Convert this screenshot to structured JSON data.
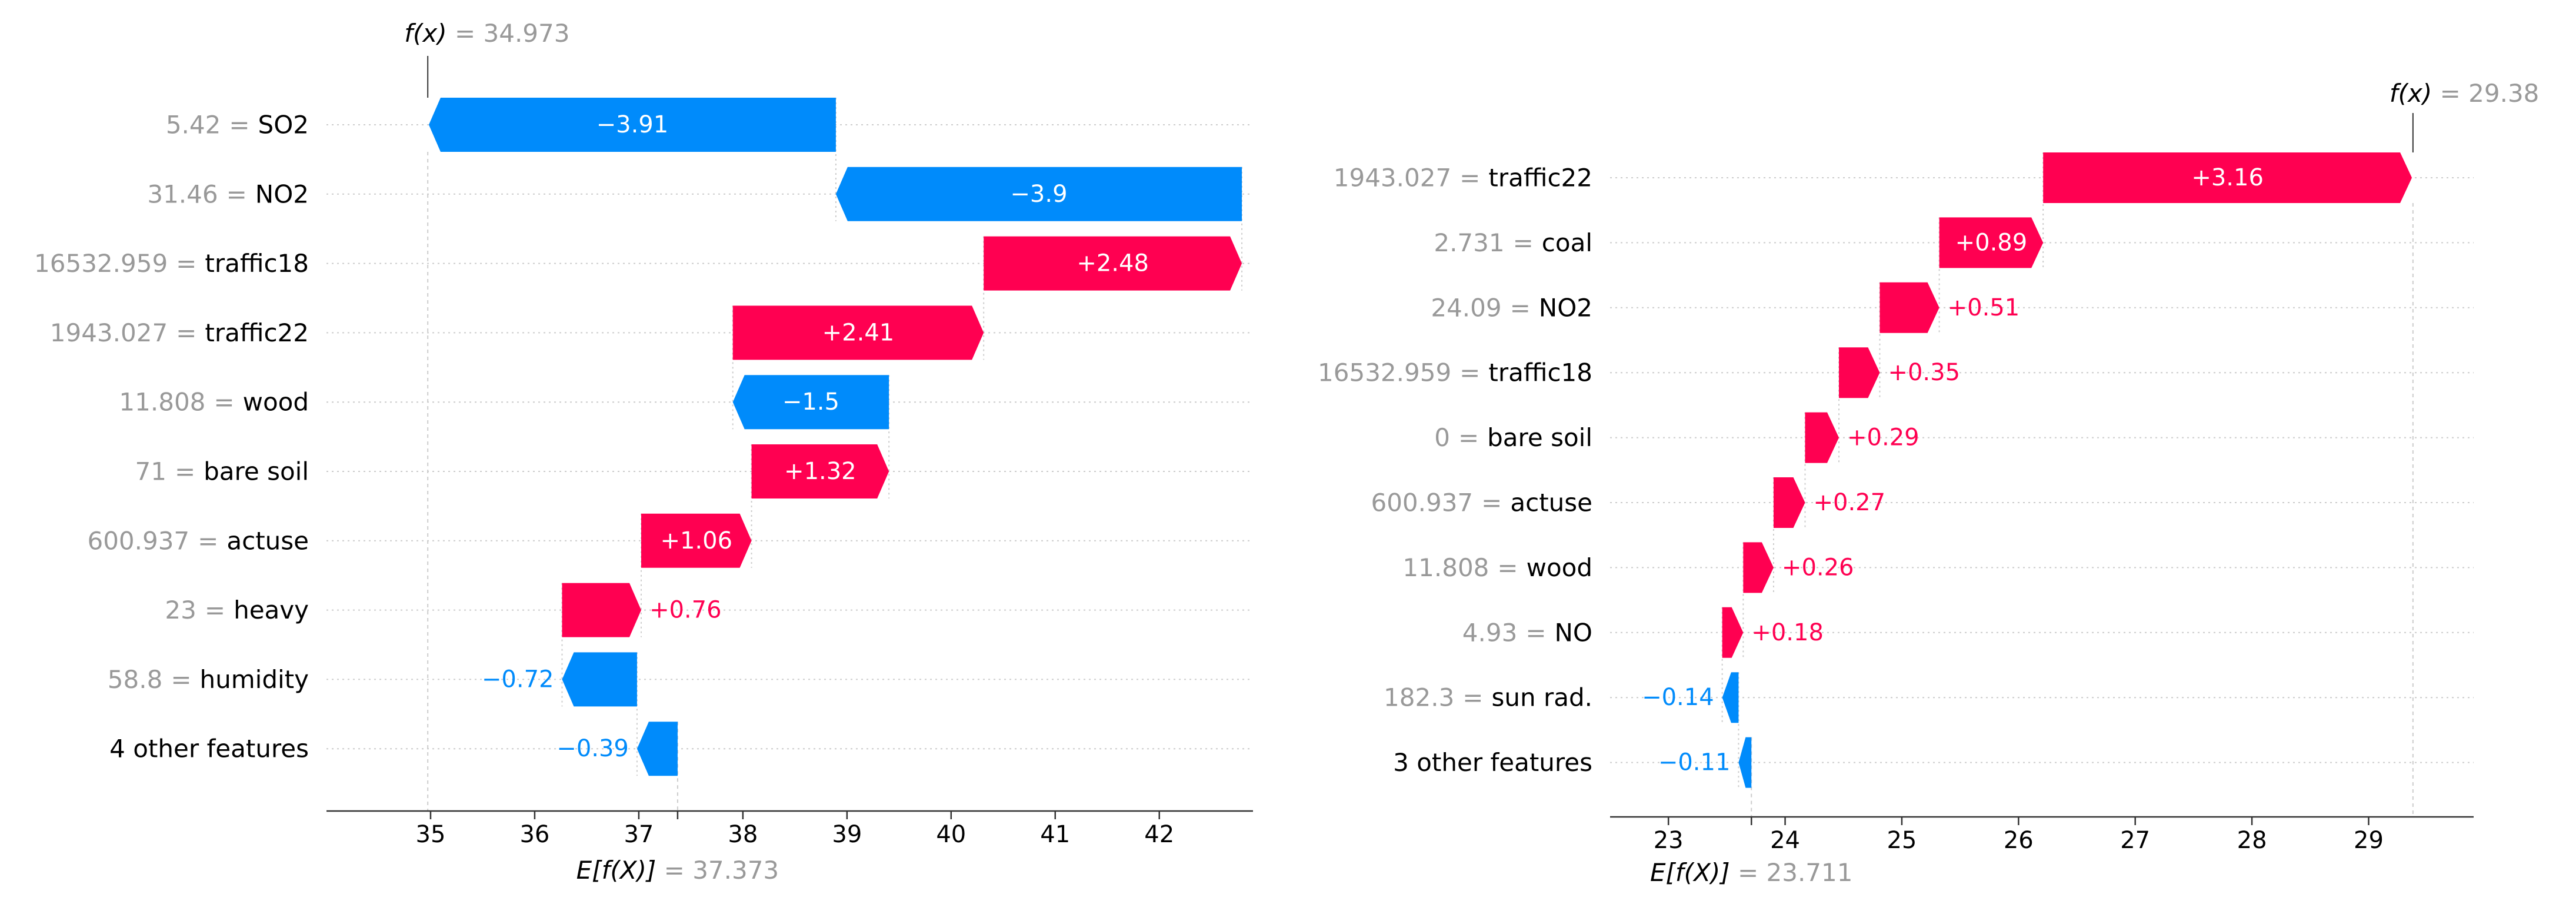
{
  "chart_data": [
    {
      "type": "waterfall",
      "fx_prefix": "f(x)",
      "fx_value": "34.973",
      "fx": 34.973,
      "base_prefix": "E[f(X)]",
      "base_value": "37.373",
      "base": 37.373,
      "xlim": [
        34.0,
        42.9
      ],
      "xticks": [
        35,
        36,
        37,
        38,
        39,
        40,
        41,
        42
      ],
      "tick_labels": [
        "35",
        "36",
        "37",
        "38",
        "39",
        "40",
        "41",
        "42"
      ],
      "features": [
        {
          "value": "5.42",
          "name": "SO2",
          "shap": -3.91,
          "label": "−3.91"
        },
        {
          "value": "31.46",
          "name": "NO2",
          "shap": -3.9,
          "label": "−3.9"
        },
        {
          "value": "16532.959",
          "name": "traffic18",
          "shap": 2.48,
          "label": "+2.48"
        },
        {
          "value": "1943.027",
          "name": "traffic22",
          "shap": 2.41,
          "label": "+2.41"
        },
        {
          "value": "11.808",
          "name": "wood",
          "shap": -1.5,
          "label": "−1.5"
        },
        {
          "value": "71",
          "name": "bare soil",
          "shap": 1.32,
          "label": "+1.32"
        },
        {
          "value": "600.937",
          "name": "actuse",
          "shap": 1.06,
          "label": "+1.06"
        },
        {
          "value": "23",
          "name": "heavy",
          "shap": 0.76,
          "label": "+0.76"
        },
        {
          "value": "58.8",
          "name": "humidity",
          "shap": -0.72,
          "label": "−0.72"
        },
        {
          "value": "",
          "name": "4 other features",
          "shap": -0.39,
          "label": "−0.39"
        }
      ]
    },
    {
      "type": "waterfall",
      "fx_prefix": "f(x)",
      "fx_value": "29.38",
      "fx": 29.38,
      "base_prefix": "E[f(X)]",
      "base_value": "23.711",
      "base": 23.711,
      "xlim": [
        22.5,
        29.9
      ],
      "xticks": [
        23,
        24,
        25,
        26,
        27,
        28,
        29
      ],
      "tick_labels": [
        "23",
        "24",
        "25",
        "26",
        "27",
        "28",
        "29"
      ],
      "features": [
        {
          "value": "1943.027",
          "name": "traffic22",
          "shap": 3.16,
          "label": "+3.16"
        },
        {
          "value": "2.731",
          "name": "coal",
          "shap": 0.89,
          "label": "+0.89"
        },
        {
          "value": "24.09",
          "name": "NO2",
          "shap": 0.51,
          "label": "+0.51"
        },
        {
          "value": "16532.959",
          "name": "traffic18",
          "shap": 0.35,
          "label": "+0.35"
        },
        {
          "value": "0",
          "name": "bare soil",
          "shap": 0.29,
          "label": "+0.29"
        },
        {
          "value": "600.937",
          "name": "actuse",
          "shap": 0.27,
          "label": "+0.27"
        },
        {
          "value": "11.808",
          "name": "wood",
          "shap": 0.26,
          "label": "+0.26"
        },
        {
          "value": "4.93",
          "name": "NO",
          "shap": 0.18,
          "label": "+0.18"
        },
        {
          "value": "182.3",
          "name": "sun rad.",
          "shap": -0.14,
          "label": "−0.14"
        },
        {
          "value": "",
          "name": "3 other features",
          "shap": -0.11,
          "label": "−0.11"
        }
      ]
    }
  ],
  "colors": {
    "positive": "#ff0051",
    "negative": "#008bfb",
    "axis": "#333333",
    "grid": "#cccccc",
    "muted": "#999999",
    "text": "#000000"
  }
}
